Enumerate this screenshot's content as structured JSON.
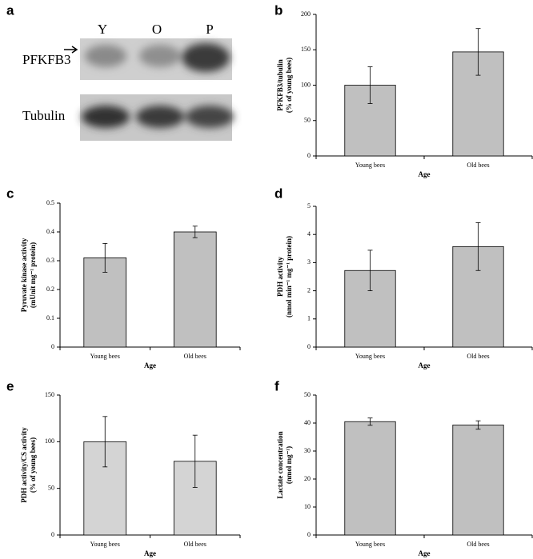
{
  "panel_a": {
    "panel": "a",
    "lanes": [
      "Y",
      "O",
      "P"
    ],
    "rows": [
      "PFKFB3",
      "Tubulin"
    ]
  },
  "chart_data": [
    {
      "panel": "b",
      "type": "bar",
      "ylabel": [
        "PFKFB3/tubulin",
        "(% of young bees)"
      ],
      "xlabel": "Age",
      "categories": [
        "Young bees",
        "Old bees"
      ],
      "values": [
        100,
        147
      ],
      "errors": [
        26,
        33
      ],
      "color": "#c0c0c0",
      "ylim": [
        0,
        200
      ],
      "yticks": [
        0,
        50,
        100,
        150,
        200
      ]
    },
    {
      "panel": "c",
      "type": "bar",
      "ylabel": [
        "Pyruvate kinase activity",
        "(mUnit mg⁻¹ protein)"
      ],
      "xlabel": "Age",
      "categories": [
        "Young bees",
        "Old bees"
      ],
      "values": [
        0.31,
        0.4
      ],
      "errors": [
        0.05,
        0.02
      ],
      "color": "#c0c0c0",
      "ylim": [
        0,
        0.5
      ],
      "yticks": [
        0,
        0.1,
        0.2,
        0.3,
        0.4,
        0.5
      ]
    },
    {
      "panel": "d",
      "type": "bar",
      "ylabel": [
        "PDH activity",
        "(nmol min⁻¹ mg⁻¹ protein)"
      ],
      "xlabel": "Age",
      "categories": [
        "Young bees",
        "Old bees"
      ],
      "values": [
        2.72,
        3.57
      ],
      "errors": [
        0.72,
        0.85
      ],
      "color": "#c0c0c0",
      "ylim": [
        0,
        5
      ],
      "yticks": [
        0,
        1,
        2,
        3,
        4,
        5
      ]
    },
    {
      "panel": "e",
      "type": "bar",
      "ylabel": [
        "PDH activity/CS activity",
        "(% of young bees)"
      ],
      "xlabel": "Age",
      "categories": [
        "Young bees",
        "Old bees"
      ],
      "values": [
        100,
        79
      ],
      "errors": [
        27,
        28
      ],
      "color": "#d4d4d4",
      "ylim": [
        0,
        150
      ],
      "yticks": [
        0,
        50,
        100,
        150
      ]
    },
    {
      "panel": "f",
      "type": "bar",
      "ylabel": [
        "Lactate concentration",
        "(nmol mg⁻¹)"
      ],
      "xlabel": "Age",
      "categories": [
        "Young bees",
        "Old bees"
      ],
      "values": [
        40.5,
        39.3
      ],
      "errors": [
        1.3,
        1.5
      ],
      "color": "#c0c0c0",
      "ylim": [
        0,
        50
      ],
      "yticks": [
        0,
        10,
        20,
        30,
        40,
        50
      ]
    }
  ]
}
